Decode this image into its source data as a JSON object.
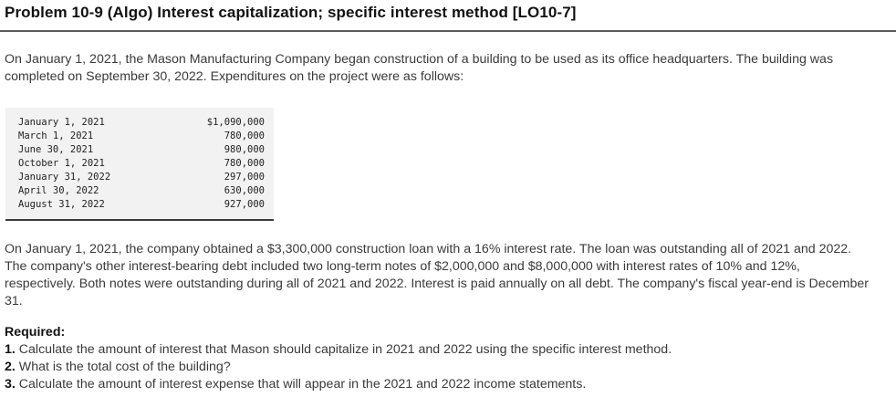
{
  "title": "Problem 10-9 (Algo) Interest capitalization; specific interest method [LO10-7]",
  "intro": "On January 1, 2021, the Mason Manufacturing Company began construction of a building to be used as its office headquarters. The building was completed on September 30, 2022. Expenditures on the project were as follows:",
  "expenditures": [
    {
      "date": "January 1, 2021",
      "amount": "$1,090,000"
    },
    {
      "date": "March 1, 2021",
      "amount": "780,000"
    },
    {
      "date": "June 30, 2021",
      "amount": "980,000"
    },
    {
      "date": "October 1, 2021",
      "amount": "780,000"
    },
    {
      "date": "January 31, 2022",
      "amount": "297,000"
    },
    {
      "date": "April 30, 2022",
      "amount": "630,000"
    },
    {
      "date": "August 31, 2022",
      "amount": "927,000"
    }
  ],
  "loan_paragraph": "On January 1, 2021, the company obtained a $3,300,000 construction loan with a 16% interest rate. The loan was outstanding all of 2021 and 2022. The company's other interest-bearing debt included two long-term notes of $2,000,000 and $8,000,000 with interest rates of 10% and 12%, respectively. Both notes were outstanding during all of 2021 and 2022. Interest is paid annually on all debt. The company's fiscal year-end is December 31.",
  "required": {
    "heading": "Required:",
    "items": [
      {
        "num": "1.",
        "text": "Calculate the amount of interest that Mason should capitalize in 2021 and 2022 using the specific interest method."
      },
      {
        "num": "2.",
        "text": "What is the total cost of the building?"
      },
      {
        "num": "3.",
        "text": "Calculate the amount of interest expense that will appear in the 2021 and 2022 income statements."
      }
    ]
  }
}
